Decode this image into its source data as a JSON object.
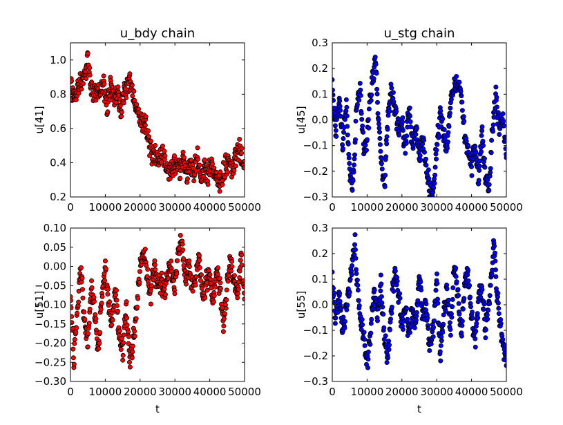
{
  "chart_data": [
    {
      "type": "scatter",
      "title": "u_bdy chain",
      "xlabel": "",
      "ylabel": "u[41]",
      "xlim": [
        0,
        50000
      ],
      "ylim": [
        0.2,
        1.1
      ],
      "xticks": [
        0,
        10000,
        20000,
        30000,
        40000,
        50000
      ],
      "yticks": [
        0.2,
        0.4,
        0.6,
        0.8,
        1.0
      ],
      "xtick_labels": [
        "0",
        "10000",
        "20000",
        "30000",
        "40000",
        "50000"
      ],
      "ytick_labels": [
        "0.2",
        "0.4",
        "0.6",
        "0.8",
        "1.0"
      ],
      "marker_color": "#ff0000",
      "edge_color": "#000000",
      "series": [
        {
          "x": [
            0,
            1500,
            2500,
            3500,
            4500,
            5000,
            5500,
            6500,
            7500,
            8500,
            9500,
            10500,
            11500,
            12500,
            13500,
            14500,
            15500,
            16500,
            17500,
            18500,
            19500,
            20500,
            21500,
            22500,
            23500,
            24500,
            25500,
            26500,
            27500,
            28500,
            29500,
            30500,
            31500,
            32500,
            33500,
            34500,
            35500,
            36500,
            37500,
            38500,
            39500,
            40500,
            41500,
            42500,
            43500,
            44500,
            45500,
            46500,
            47500,
            48500,
            49500,
            50000
          ],
          "y": [
            0.84,
            0.78,
            0.85,
            0.88,
            0.95,
            1.03,
            0.9,
            0.78,
            0.83,
            0.8,
            0.86,
            0.72,
            0.86,
            0.77,
            0.82,
            0.7,
            0.83,
            0.86,
            0.87,
            0.73,
            0.69,
            0.65,
            0.62,
            0.52,
            0.44,
            0.45,
            0.4,
            0.47,
            0.37,
            0.34,
            0.38,
            0.4,
            0.36,
            0.42,
            0.33,
            0.4,
            0.35,
            0.43,
            0.3,
            0.36,
            0.33,
            0.39,
            0.32,
            0.29,
            0.31,
            0.38,
            0.41,
            0.36,
            0.44,
            0.49,
            0.4,
            0.36
          ]
        }
      ]
    },
    {
      "type": "scatter",
      "title": "u_stg chain",
      "xlabel": "",
      "ylabel": "u[45]",
      "xlim": [
        0,
        50000
      ],
      "ylim": [
        -0.3,
        0.3
      ],
      "xticks": [
        0,
        10000,
        20000,
        30000,
        40000,
        50000
      ],
      "yticks": [
        -0.3,
        -0.2,
        -0.1,
        0.0,
        0.1,
        0.2,
        0.3
      ],
      "xtick_labels": [
        "0",
        "10000",
        "20000",
        "30000",
        "40000",
        "50000"
      ],
      "ytick_labels": [
        "−0.3",
        "−0.2",
        "−0.1",
        "0.0",
        "0.1",
        "0.2",
        "0.3"
      ],
      "marker_color": "#0000ff",
      "edge_color": "#000000",
      "series": [
        {
          "x": [
            0,
            1000,
            2000,
            3000,
            4000,
            5000,
            6000,
            7000,
            8000,
            9000,
            10000,
            11000,
            12000,
            12500,
            13000,
            14000,
            15000,
            16000,
            17000,
            18000,
            19000,
            20000,
            21000,
            22000,
            23000,
            24000,
            25000,
            26000,
            27000,
            28000,
            29000,
            30000,
            31000,
            32000,
            33000,
            34000,
            35000,
            36000,
            37000,
            38000,
            39000,
            40000,
            41000,
            42000,
            43000,
            44000,
            45000,
            46000,
            47000,
            48000,
            49000,
            50000
          ],
          "y": [
            0.12,
            -0.05,
            0.08,
            -0.1,
            0.05,
            -0.2,
            -0.25,
            0.05,
            0.12,
            -0.12,
            -0.08,
            0.1,
            0.2,
            0.23,
            0.05,
            -0.15,
            -0.26,
            0.02,
            0.12,
            0.05,
            -0.05,
            0.0,
            -0.12,
            0.05,
            -0.1,
            -0.02,
            -0.15,
            -0.08,
            -0.2,
            -0.26,
            -0.28,
            -0.1,
            0.02,
            -0.05,
            -0.12,
            0.08,
            0.12,
            0.15,
            0.1,
            -0.05,
            -0.12,
            -0.18,
            -0.1,
            -0.24,
            -0.05,
            -0.22,
            -0.26,
            -0.05,
            0.1,
            -0.05,
            0.02,
            -0.15
          ]
        }
      ]
    },
    {
      "type": "scatter",
      "title": "",
      "xlabel": "t",
      "ylabel": "u[51]",
      "xlim": [
        0,
        50000
      ],
      "ylim": [
        -0.3,
        0.1
      ],
      "xticks": [
        0,
        10000,
        20000,
        30000,
        40000,
        50000
      ],
      "yticks": [
        -0.3,
        -0.25,
        -0.2,
        -0.15,
        -0.1,
        -0.05,
        0.0,
        0.05,
        0.1
      ],
      "xtick_labels": [
        "0",
        "10000",
        "20000",
        "30000",
        "40000",
        "50000"
      ],
      "ytick_labels": [
        "−0.30",
        "−0.25",
        "−0.20",
        "−0.15",
        "−0.10",
        "−0.05",
        "0.00",
        "0.05",
        "0.10"
      ],
      "marker_color": "#ff0000",
      "edge_color": "#000000",
      "series": [
        {
          "x": [
            0,
            1000,
            2000,
            3000,
            4000,
            5000,
            6000,
            7000,
            8000,
            9000,
            10000,
            11000,
            12000,
            13000,
            14000,
            15000,
            16000,
            17000,
            18000,
            19000,
            20000,
            21000,
            22000,
            23000,
            24000,
            25000,
            26000,
            27000,
            28000,
            29000,
            30000,
            31000,
            32000,
            33000,
            34000,
            35000,
            36000,
            37000,
            38000,
            39000,
            40000,
            41000,
            42000,
            43000,
            44000,
            45000,
            46000,
            47000,
            48000,
            49000,
            50000
          ],
          "y": [
            -0.08,
            -0.24,
            -0.12,
            0.0,
            -0.15,
            -0.2,
            -0.05,
            -0.12,
            -0.22,
            -0.08,
            0.0,
            -0.1,
            -0.15,
            -0.05,
            -0.18,
            -0.22,
            -0.1,
            -0.24,
            -0.2,
            -0.12,
            0.0,
            0.05,
            -0.02,
            -0.08,
            0.0,
            -0.05,
            -0.04,
            -0.06,
            -0.02,
            0.0,
            -0.05,
            0.04,
            0.06,
            -0.03,
            0.0,
            -0.05,
            -0.02,
            0.02,
            -0.08,
            -0.04,
            -0.02,
            -0.1,
            0.0,
            -0.06,
            -0.16,
            -0.05,
            0.02,
            -0.04,
            -0.08,
            0.02,
            -0.08
          ]
        }
      ]
    },
    {
      "type": "scatter",
      "title": "",
      "xlabel": "t",
      "ylabel": "u[55]",
      "xlim": [
        0,
        50000
      ],
      "ylim": [
        -0.3,
        0.3
      ],
      "xticks": [
        0,
        10000,
        20000,
        30000,
        40000,
        50000
      ],
      "yticks": [
        -0.3,
        -0.2,
        -0.1,
        0.0,
        0.1,
        0.2,
        0.3
      ],
      "xtick_labels": [
        "0",
        "10000",
        "20000",
        "30000",
        "40000",
        "50000"
      ],
      "ytick_labels": [
        "−0.3",
        "−0.2",
        "−0.1",
        "0.0",
        "0.1",
        "0.2",
        "0.3"
      ],
      "marker_color": "#0000ff",
      "edge_color": "#000000",
      "series": [
        {
          "x": [
            0,
            1000,
            2000,
            3000,
            4000,
            5000,
            6000,
            6500,
            7000,
            8000,
            9000,
            10000,
            11000,
            12000,
            13000,
            14000,
            15000,
            16000,
            17000,
            18000,
            19000,
            20000,
            21000,
            22000,
            23000,
            24000,
            25000,
            26000,
            27000,
            28000,
            29000,
            30000,
            31000,
            32000,
            33000,
            34000,
            35000,
            36000,
            37000,
            38000,
            39000,
            40000,
            41000,
            42000,
            43000,
            44000,
            45000,
            46000,
            46500,
            47000,
            48000,
            49000,
            50000
          ],
          "y": [
            0.1,
            -0.05,
            0.05,
            -0.1,
            -0.02,
            0.08,
            0.18,
            0.25,
            0.1,
            -0.05,
            -0.12,
            -0.24,
            -0.1,
            0.05,
            -0.03,
            0.08,
            -0.15,
            -0.2,
            0.0,
            0.14,
            0.05,
            -0.08,
            0.0,
            -0.12,
            -0.02,
            -0.08,
            0.12,
            -0.06,
            0.0,
            -0.18,
            -0.1,
            0.1,
            -0.2,
            -0.05,
            0.05,
            -0.1,
            0.15,
            0.05,
            -0.12,
            0.08,
            0.12,
            -0.05,
            -0.15,
            0.02,
            0.08,
            -0.1,
            0.0,
            0.15,
            0.25,
            0.1,
            -0.05,
            -0.15,
            -0.22
          ]
        }
      ]
    }
  ]
}
